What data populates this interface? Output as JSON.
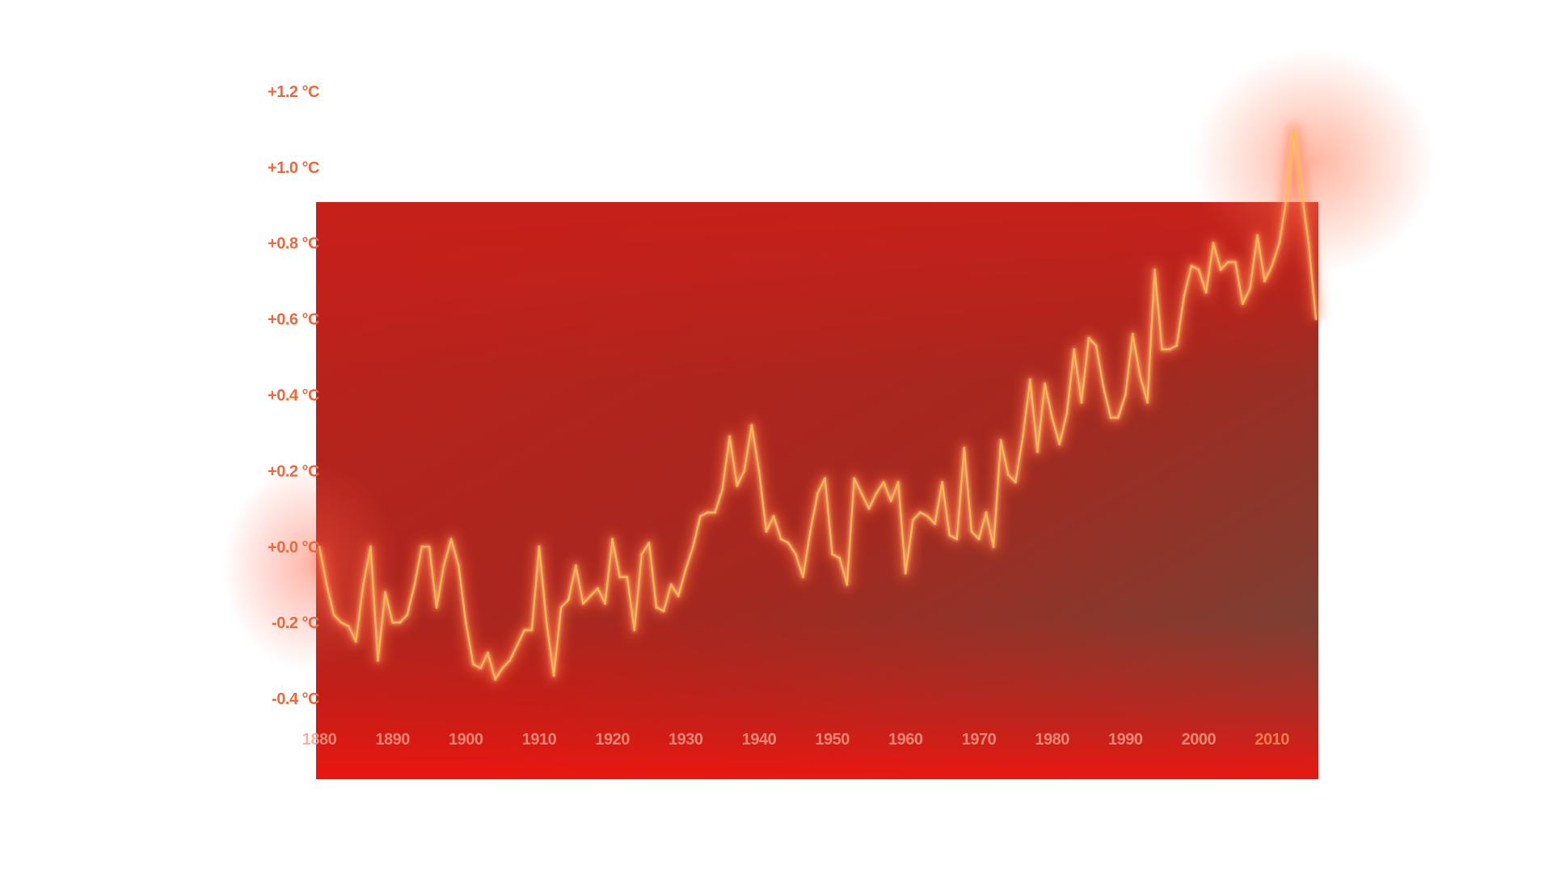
{
  "colors": {
    "background": "#ffffff",
    "panel": "#c0201c",
    "panel_dark": "#6b4a3c",
    "line": "#ffb84d",
    "glow": "#ff6a3d",
    "tick_label": "#f2673a"
  },
  "chart_data": {
    "type": "line",
    "title": "",
    "xlabel": "",
    "ylabel": "",
    "xlim": [
      1880,
      2016
    ],
    "ylim": [
      -0.4,
      1.2
    ],
    "y_ticks": [
      1.2,
      1.0,
      0.8,
      0.6,
      0.4,
      0.2,
      0.0,
      -0.2,
      -0.4
    ],
    "y_tick_labels": [
      "+1.2 °C",
      "+1.0 °C",
      "+0.8 °C",
      "+0.6 °C",
      "+0.4 °C",
      "+0.2 °C",
      "+0.0 °C",
      "-0.2 °C",
      "-0.4 °C"
    ],
    "x_ticks": [
      1880,
      1890,
      1900,
      1910,
      1920,
      1930,
      1940,
      1950,
      1960,
      1970,
      1980,
      1990,
      2000,
      2010
    ],
    "x_tick_labels": [
      "1880",
      "1890",
      "1900",
      "1910",
      "1920",
      "1930",
      "1940",
      "1950",
      "1960",
      "1970",
      "1980",
      "1990",
      "2000",
      "2010"
    ],
    "grid": false,
    "series": [
      {
        "x": [
          1880,
          1881,
          1882,
          1883,
          1884,
          1885,
          1886,
          1887,
          1888,
          1889,
          1890,
          1891,
          1892,
          1893,
          1894,
          1895,
          1896,
          1897,
          1898,
          1899,
          1900,
          1901,
          1902,
          1903,
          1904,
          1905,
          1906,
          1907,
          1908,
          1909,
          1910,
          1911,
          1912,
          1913,
          1914,
          1915,
          1916,
          1917,
          1918,
          1919,
          1920,
          1921,
          1922,
          1923,
          1924,
          1925,
          1926,
          1927,
          1928,
          1929,
          1930,
          1931,
          1932,
          1933,
          1934,
          1935,
          1936,
          1937,
          1938,
          1939,
          1940,
          1941,
          1942,
          1943,
          1944,
          1945,
          1946,
          1947,
          1948,
          1949,
          1950,
          1951,
          1952,
          1953,
          1954,
          1955,
          1956,
          1957,
          1958,
          1959,
          1960,
          1961,
          1962,
          1963,
          1964,
          1965,
          1966,
          1967,
          1968,
          1969,
          1970,
          1971,
          1972,
          1973,
          1974,
          1975,
          1976,
          1977,
          1978,
          1979,
          1980,
          1981,
          1982,
          1983,
          1984,
          1985,
          1986,
          1987,
          1988,
          1989,
          1990,
          1991,
          1992,
          1993,
          1994,
          1995,
          1996,
          1997,
          1998,
          1999,
          2000,
          2001,
          2002,
          2003,
          2004,
          2005,
          2006,
          2007,
          2008,
          2009,
          2010,
          2011,
          2012,
          2013,
          2014,
          2015,
          2016
        ],
        "values": [
          0.0,
          -0.1,
          -0.18,
          -0.2,
          -0.21,
          -0.25,
          -0.1,
          0.0,
          -0.3,
          -0.12,
          -0.2,
          -0.2,
          -0.18,
          -0.1,
          0.0,
          0.0,
          -0.16,
          -0.05,
          0.02,
          -0.05,
          -0.2,
          -0.31,
          -0.32,
          -0.28,
          -0.35,
          -0.32,
          -0.3,
          -0.26,
          -0.22,
          -0.22,
          0.0,
          -0.2,
          -0.34,
          -0.16,
          -0.14,
          -0.05,
          -0.15,
          -0.13,
          -0.11,
          -0.15,
          0.02,
          -0.08,
          -0.08,
          -0.22,
          -0.02,
          0.01,
          -0.16,
          -0.17,
          -0.1,
          -0.13,
          -0.06,
          0.0,
          0.08,
          0.09,
          0.09,
          0.15,
          0.29,
          0.16,
          0.2,
          0.32,
          0.2,
          0.04,
          0.08,
          0.02,
          0.01,
          -0.02,
          -0.08,
          0.04,
          0.14,
          0.18,
          -0.02,
          -0.03,
          -0.1,
          0.18,
          0.14,
          0.1,
          0.14,
          0.17,
          0.12,
          0.17,
          -0.07,
          0.07,
          0.09,
          0.08,
          0.06,
          0.17,
          0.03,
          0.02,
          0.26,
          0.04,
          0.02,
          0.09,
          0.0,
          0.28,
          0.19,
          0.17,
          0.29,
          0.44,
          0.25,
          0.43,
          0.34,
          0.27,
          0.35,
          0.52,
          0.38,
          0.55,
          0.53,
          0.42,
          0.34,
          0.34,
          0.4,
          0.56,
          0.45,
          0.38,
          0.73,
          0.52,
          0.52,
          0.53,
          0.66,
          0.74,
          0.73,
          0.67,
          0.8,
          0.73,
          0.75,
          0.75,
          0.64,
          0.68,
          0.82,
          0.7,
          0.74,
          0.8,
          0.92,
          1.1,
          0.94,
          0.8,
          0.6
        ]
      }
    ]
  }
}
